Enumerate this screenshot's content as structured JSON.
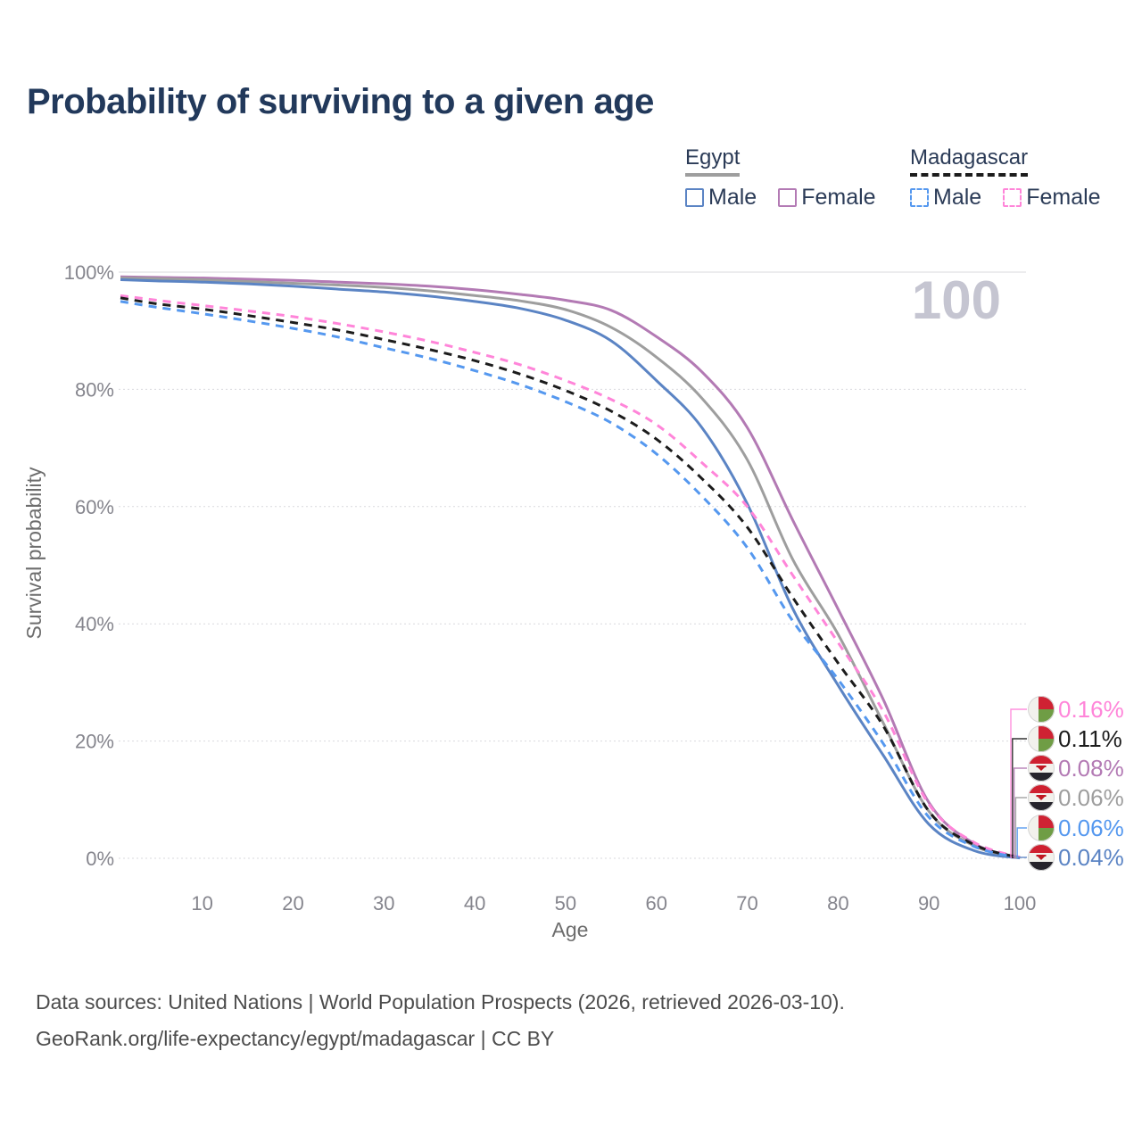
{
  "title": "Probability of surviving to a given age",
  "watermark_age": "100",
  "legend": {
    "groups": [
      {
        "label": "Egypt",
        "line_style": "solid",
        "line_color": "#9e9e9e",
        "items": [
          {
            "label": "Male",
            "color": "#5b84c4",
            "dashed": false
          },
          {
            "label": "Female",
            "color": "#b37ab4",
            "dashed": false
          }
        ]
      },
      {
        "label": "Madagascar",
        "line_style": "dashed",
        "line_color": "#1c1c1c",
        "items": [
          {
            "label": "Male",
            "color": "#5598ef",
            "dashed": true
          },
          {
            "label": "Female",
            "color": "#ff85d9",
            "dashed": true
          }
        ]
      }
    ]
  },
  "chart_data": {
    "type": "line",
    "title": "Probability of surviving to a given age",
    "xlabel": "Age",
    "ylabel": "Survival probability",
    "xlim": [
      1,
      100
    ],
    "ylim": [
      0,
      100
    ],
    "grid": "horizontal",
    "legend_position": "top-right",
    "x_ticks": [
      {
        "v": 10,
        "label": "10"
      },
      {
        "v": 20,
        "label": "20"
      },
      {
        "v": 30,
        "label": "30"
      },
      {
        "v": 40,
        "label": "40"
      },
      {
        "v": 50,
        "label": "50"
      },
      {
        "v": 60,
        "label": "60"
      },
      {
        "v": 70,
        "label": "70"
      },
      {
        "v": 80,
        "label": "80"
      },
      {
        "v": 90,
        "label": "90"
      },
      {
        "v": 100,
        "label": "100"
      }
    ],
    "y_ticks": [
      {
        "v": 0,
        "label": "0%"
      },
      {
        "v": 20,
        "label": "20%"
      },
      {
        "v": 40,
        "label": "40%"
      },
      {
        "v": 60,
        "label": "60%"
      },
      {
        "v": 80,
        "label": "80%"
      },
      {
        "v": 100,
        "label": "100%"
      }
    ],
    "ages": [
      1,
      5,
      10,
      15,
      20,
      25,
      30,
      35,
      40,
      45,
      50,
      55,
      60,
      65,
      70,
      75,
      80,
      85,
      90,
      95,
      100
    ],
    "series": [
      {
        "name": "Egypt Female",
        "country": "egypt",
        "style": "solid",
        "color": "#b37ab4",
        "end_label": "0.08%",
        "values": [
          99.2,
          99.1,
          99.0,
          98.8,
          98.6,
          98.3,
          98.0,
          97.6,
          97.0,
          96.2,
          95.2,
          93.5,
          89.0,
          83.0,
          73.5,
          57.7,
          42.5,
          27.0,
          9.5,
          2.5,
          0.08
        ]
      },
      {
        "name": "Egypt Both sexes",
        "country": "egypt",
        "style": "solid",
        "color": "#9e9e9e",
        "end_label": "0.06%",
        "values": [
          99.0,
          98.9,
          98.7,
          98.4,
          98.1,
          97.8,
          97.4,
          96.8,
          96.0,
          95.1,
          93.6,
          90.6,
          85.5,
          78.5,
          68.0,
          51.0,
          38.2,
          23.0,
          8.0,
          2.1,
          0.06
        ]
      },
      {
        "name": "Egypt Male",
        "country": "egypt",
        "style": "solid",
        "color": "#5b84c4",
        "end_label": "0.04%",
        "values": [
          98.7,
          98.5,
          98.3,
          98.0,
          97.6,
          97.1,
          96.6,
          95.9,
          95.0,
          93.8,
          91.8,
          88.3,
          81.5,
          73.5,
          60.5,
          42.6,
          29.5,
          17.5,
          5.8,
          1.3,
          0.04
        ]
      },
      {
        "name": "Madagascar Female",
        "country": "madagascar",
        "style": "dashed",
        "color": "#ff85d9",
        "end_label": "0.16%",
        "values": [
          96.0,
          95.2,
          94.3,
          93.4,
          92.4,
          91.2,
          89.8,
          88.2,
          86.3,
          84.2,
          81.5,
          78.3,
          74.0,
          67.5,
          60.0,
          48.3,
          36.8,
          25.0,
          9.2,
          2.7,
          0.16
        ]
      },
      {
        "name": "Madagascar Both sexes",
        "country": "madagascar",
        "style": "dashed",
        "color": "#1c1c1c",
        "end_label": "0.11%",
        "values": [
          95.6,
          94.6,
          93.7,
          92.6,
          91.4,
          90.1,
          88.5,
          86.8,
          84.9,
          82.6,
          79.8,
          76.3,
          71.5,
          64.8,
          56.5,
          44.5,
          33.3,
          22.5,
          8.0,
          2.3,
          0.11
        ]
      },
      {
        "name": "Madagascar Male",
        "country": "madagascar",
        "style": "dashed",
        "color": "#5598ef",
        "end_label": "0.06%",
        "values": [
          95.0,
          94.0,
          92.9,
          91.7,
          90.4,
          88.9,
          87.1,
          85.3,
          83.2,
          80.8,
          77.9,
          74.3,
          69.0,
          61.8,
          53.0,
          40.5,
          30.5,
          19.5,
          7.0,
          2.0,
          0.06
        ]
      }
    ]
  },
  "endpoint_labels": [
    {
      "value": "0.16%",
      "v": 0.16,
      "color": "#ff85d9",
      "flag": "madagascar"
    },
    {
      "value": "0.11%",
      "v": 0.11,
      "color": "#1c1c1c",
      "flag": "madagascar"
    },
    {
      "value": "0.08%",
      "v": 0.08,
      "color": "#b37ab4",
      "flag": "egypt"
    },
    {
      "value": "0.06%",
      "v": 0.06,
      "color": "#9e9e9e",
      "flag": "egypt"
    },
    {
      "value": "0.06%",
      "v": 0.06,
      "color": "#5598ef",
      "flag": "madagascar"
    },
    {
      "value": "0.04%",
      "v": 0.04,
      "color": "#5b84c4",
      "flag": "egypt"
    }
  ],
  "colors": {
    "title": "#22395b",
    "axis_text": "#85858d",
    "axis_title": "#6d6d6d",
    "grid": "#d9d9de",
    "watermark": "#c5c5d1",
    "footer": "#4c4c4c",
    "flag_madagascar": [
      "#f2f1ec",
      "#cf2233",
      "#6f9d45"
    ],
    "flag_egypt": [
      "#cf2030",
      "#f2f1ec",
      "#26242c",
      "#bf1722"
    ]
  },
  "footer": {
    "line1": "Data sources: United Nations | World Population Prospects (2026, retrieved 2026-03-10).",
    "line2": "GeoRank.org/life-expectancy/egypt/madagascar | CC BY"
  }
}
